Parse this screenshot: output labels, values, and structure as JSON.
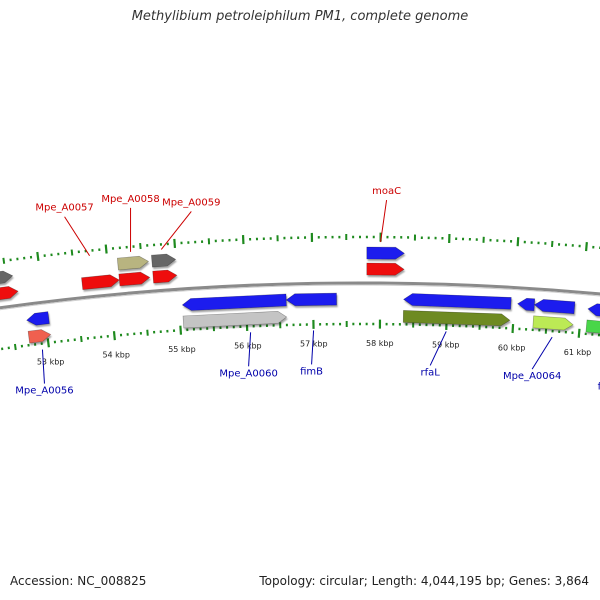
{
  "title": "Methylibium petroleiphilum PM1, complete genome",
  "footer": {
    "accession_label": "Accession: NC_008825",
    "summary_label": "Topology: circular; Length: 4,044,195 bp; Genes: 3,864"
  },
  "colors": {
    "backbone": "#8a8a8a",
    "tick": "#1e8a1e",
    "top_label": "#cc0000",
    "bottom_label": "#0000aa",
    "scale_text": "#222222"
  },
  "scale": [
    {
      "label": "53 kbp",
      "kbp": 53
    },
    {
      "label": "54 kbp",
      "kbp": 54
    },
    {
      "label": "55 kbp",
      "kbp": 55
    },
    {
      "label": "56 kbp",
      "kbp": 56
    },
    {
      "label": "57 kbp",
      "kbp": 57
    },
    {
      "label": "58 kbp",
      "kbp": 58
    },
    {
      "label": "59 kbp",
      "kbp": 59
    },
    {
      "label": "60 kbp",
      "kbp": 60
    },
    {
      "label": "61 kbp",
      "kbp": 61
    }
  ],
  "features": [
    {
      "name": "feat-upper-gray-left",
      "track": "outer2",
      "start": 52.3,
      "end": 52.6,
      "strand": "+",
      "color": "#666666"
    },
    {
      "name": "feat-red-left-edge",
      "track": "outer1",
      "start": 52.3,
      "end": 52.65,
      "strand": "+",
      "color": "#ee1111"
    },
    {
      "name": "Mpe_A0056-blue",
      "track": "inner1",
      "start": 52.72,
      "end": 53.05,
      "strand": "-",
      "color": "#1a1aee"
    },
    {
      "name": "Mpe_A0056-salmon",
      "track": "inner2",
      "start": 52.72,
      "end": 53.05,
      "strand": "+",
      "color": "#f06050"
    },
    {
      "name": "Mpe_A0057",
      "track": "outer1",
      "start": 53.6,
      "end": 54.15,
      "strand": "+",
      "color": "#ee1111"
    },
    {
      "name": "Mpe_A0058-olive",
      "track": "outer2",
      "start": 54.15,
      "end": 54.6,
      "strand": "+",
      "color": "#b8b480"
    },
    {
      "name": "Mpe_A0058",
      "track": "outer1",
      "start": 54.15,
      "end": 54.6,
      "strand": "+",
      "color": "#ee1111"
    },
    {
      "name": "Mpe_A0059-gray",
      "track": "outer2",
      "start": 54.65,
      "end": 55.0,
      "strand": "+",
      "color": "#666666"
    },
    {
      "name": "Mpe_A0059",
      "track": "outer1",
      "start": 54.65,
      "end": 55.0,
      "strand": "+",
      "color": "#ee1111"
    },
    {
      "name": "feat-blue-55-56",
      "track": "inner1",
      "start": 55.05,
      "end": 56.6,
      "strand": "-",
      "color": "#1a1aee"
    },
    {
      "name": "feat-lightgray-55-56",
      "track": "inner2",
      "start": 55.05,
      "end": 56.6,
      "strand": "+",
      "color": "#c4c4c4"
    },
    {
      "name": "fimB",
      "track": "inner1",
      "start": 56.6,
      "end": 57.35,
      "strand": "-",
      "color": "#1a1aee"
    },
    {
      "name": "moaC-blue",
      "track": "outer2",
      "start": 57.8,
      "end": 58.35,
      "strand": "+",
      "color": "#1a1aee"
    },
    {
      "name": "moaC",
      "track": "outer1",
      "start": 57.8,
      "end": 58.35,
      "strand": "+",
      "color": "#ee1111"
    },
    {
      "name": "rfaL-blue",
      "track": "inner1",
      "start": 58.35,
      "end": 59.95,
      "strand": "-",
      "color": "#1a1aee"
    },
    {
      "name": "rfaL",
      "track": "inner2",
      "start": 58.35,
      "end": 59.95,
      "strand": "+",
      "color": "#6e8a22"
    },
    {
      "name": "feat-blue-60a",
      "track": "inner1",
      "start": 60.05,
      "end": 60.3,
      "strand": "-",
      "color": "#1a1aee"
    },
    {
      "name": "Mpe_A0064-blue",
      "track": "inner1",
      "start": 60.3,
      "end": 60.9,
      "strand": "-",
      "color": "#1a1aee"
    },
    {
      "name": "Mpe_A0064",
      "track": "inner2",
      "start": 60.3,
      "end": 60.9,
      "strand": "+",
      "color": "#bcea55"
    },
    {
      "name": "fimA-blue",
      "track": "inner1",
      "start": 61.1,
      "end": 61.9,
      "strand": "-",
      "color": "#1a1aee"
    },
    {
      "name": "fimA",
      "track": "inner2",
      "start": 61.1,
      "end": 61.9,
      "strand": "+",
      "color": "#4ad64a"
    }
  ],
  "labels": [
    {
      "text": "Mpe_A0056",
      "side": "bottom",
      "kbp": 52.9,
      "level": 2
    },
    {
      "text": "Mpe_A0057",
      "side": "top",
      "kbp": 53.75,
      "level": 2
    },
    {
      "text": "Mpe_A0058",
      "side": "top",
      "kbp": 54.35,
      "level": 2
    },
    {
      "text": "Mpe_A0059",
      "side": "top",
      "kbp": 54.8,
      "level": 2
    },
    {
      "text": "Mpe_A0060",
      "side": "bottom",
      "kbp": 56.05,
      "level": 2
    },
    {
      "text": "fimB",
      "side": "bottom",
      "kbp": 57.0,
      "level": 2
    },
    {
      "text": "moaC",
      "side": "top",
      "kbp": 58.0,
      "level": 1
    },
    {
      "text": "rfaL",
      "side": "bottom",
      "kbp": 59.0,
      "level": 2
    },
    {
      "text": "Mpe_A0064",
      "side": "bottom",
      "kbp": 60.6,
      "level": 2
    },
    {
      "text": "fimA",
      "side": "bottom",
      "kbp": 61.4,
      "level": 2
    }
  ]
}
